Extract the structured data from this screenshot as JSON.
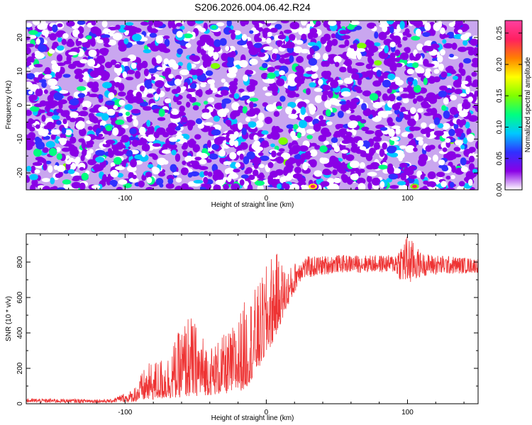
{
  "title": "S206.2026.004.06.42.R24",
  "chart_data": [
    {
      "type": "heatmap",
      "xlabel": "Height of straight line (km)",
      "ylabel": "Frequency (Hz)",
      "xlim": [
        -170,
        150
      ],
      "ylim": [
        -25,
        25
      ],
      "x_ticks": [
        -100,
        0,
        100
      ],
      "y_ticks": [
        -20,
        -10,
        0,
        10,
        20
      ],
      "colorbar": {
        "label": "Normalized spectral amplitude",
        "range": [
          0,
          0.27
        ],
        "ticks": [
          "0.00",
          "0.05",
          "0.10",
          "0.15",
          "0.20",
          "0.25"
        ],
        "tick_values": [
          0,
          0.05,
          0.1,
          0.15,
          0.2,
          0.25
        ],
        "colors": [
          "#ffffff",
          "#8a00e6",
          "#3030ff",
          "#00c8ff",
          "#00ff80",
          "#80ff00",
          "#ffff00",
          "#ff8000",
          "#ff2060",
          "#ff40a0"
        ]
      },
      "description_of_field": "speckled noise mostly purple/blue (amplitude ~0.02-0.08) with scattered cyan/green spots; hot spots near x=33,y=-24 and x=105,y=-24",
      "hot_spots": [
        {
          "x": 33,
          "y": -24,
          "value": 0.24
        },
        {
          "x": 105,
          "y": -24,
          "value": 0.23
        },
        {
          "x": -37,
          "y": 23,
          "value": 0.13
        }
      ]
    },
    {
      "type": "line",
      "xlabel": "Height of straight line (km)",
      "ylabel": "SNR (10 * v/v)",
      "xlim": [
        -170,
        150
      ],
      "ylim": [
        0,
        960
      ],
      "x_ticks": [
        -100,
        0,
        100
      ],
      "y_ticks": [
        0,
        200,
        400,
        600,
        800
      ],
      "color": "#ee3333",
      "series": [
        {
          "name": "SNR",
          "envelope": [
            {
              "x": -170,
              "low": 5,
              "high": 30
            },
            {
              "x": -110,
              "low": 5,
              "high": 25
            },
            {
              "x": -95,
              "low": 10,
              "high": 80
            },
            {
              "x": -85,
              "low": 20,
              "high": 220
            },
            {
              "x": -70,
              "low": 30,
              "high": 280
            },
            {
              "x": -55,
              "low": 40,
              "high": 520
            },
            {
              "x": -40,
              "low": 50,
              "high": 330
            },
            {
              "x": -25,
              "low": 60,
              "high": 420
            },
            {
              "x": -15,
              "low": 80,
              "high": 590
            },
            {
              "x": -5,
              "low": 200,
              "high": 680
            },
            {
              "x": 5,
              "low": 350,
              "high": 880
            },
            {
              "x": 15,
              "low": 550,
              "high": 760
            },
            {
              "x": 25,
              "low": 700,
              "high": 830
            },
            {
              "x": 50,
              "low": 740,
              "high": 840
            },
            {
              "x": 90,
              "low": 740,
              "high": 840
            },
            {
              "x": 100,
              "low": 650,
              "high": 960
            },
            {
              "x": 110,
              "low": 720,
              "high": 850
            },
            {
              "x": 150,
              "low": 740,
              "high": 820
            }
          ]
        }
      ]
    }
  ]
}
